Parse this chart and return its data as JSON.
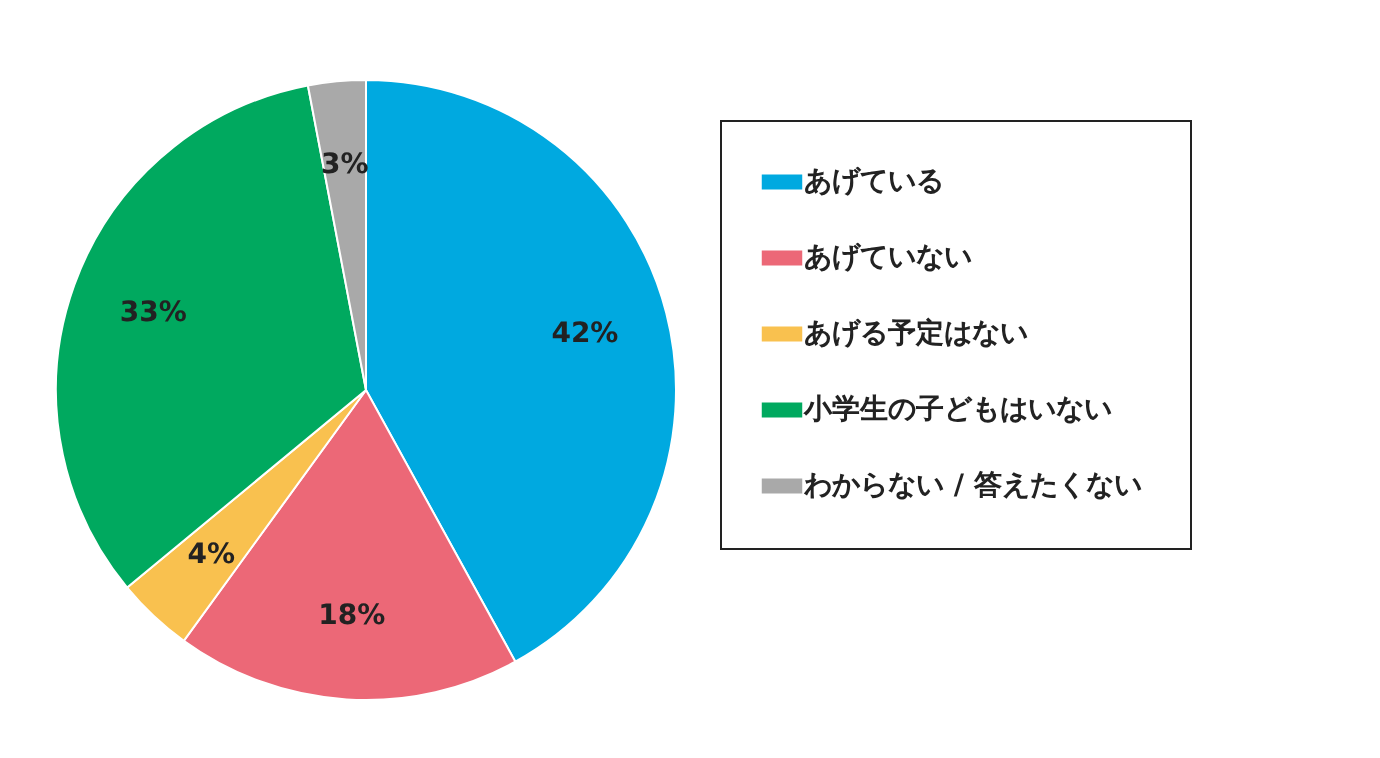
{
  "chart_data": {
    "type": "pie",
    "categories": [
      "あげている",
      "あげていない",
      "あげる予定はない",
      "小学生の子どもはいない",
      "わからない / 答えたくない"
    ],
    "values": [
      42,
      18,
      4,
      33,
      3
    ],
    "colors": [
      "#00a9e0",
      "#ec6877",
      "#f9c14f",
      "#00a95f",
      "#a9a9a9"
    ],
    "value_labels": [
      "42%",
      "18%",
      "4%",
      "33%",
      "3%"
    ],
    "legend": "right"
  }
}
